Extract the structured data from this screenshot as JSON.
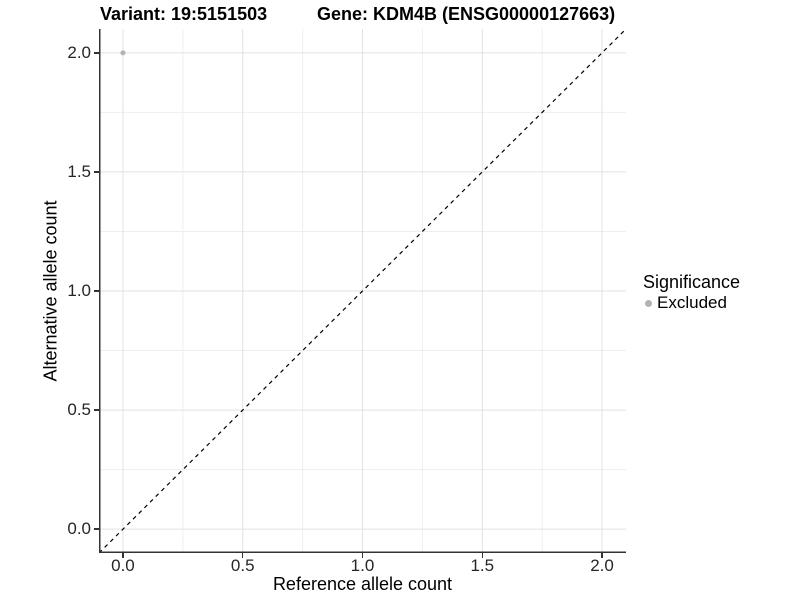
{
  "title": {
    "variant": "Variant: 19:5151503",
    "gene": "Gene: KDM4B (ENSG00000127663)"
  },
  "legend": {
    "title": "Significance",
    "items": [
      {
        "label": "Excluded",
        "color": "#b3b3b3",
        "marker": "point"
      }
    ]
  },
  "colors": {
    "background": "#ffffff",
    "grid_major": "#e2e2e2",
    "grid_minor": "#eeeeee",
    "axis_line": "#333333",
    "tick_mark": "#333333",
    "tick_label": "#262626",
    "title_text": "#000000",
    "reference_line": "#000000",
    "point": "#b3b3b3"
  },
  "chart_data": {
    "type": "scatter",
    "title": "Variant: 19:5151503    Gene: KDM4B (ENSG00000127663)",
    "xlabel": "Reference allele count",
    "ylabel": "Alternative allele count",
    "xlim": [
      -0.1,
      2.1
    ],
    "ylim": [
      -0.1,
      2.1
    ],
    "x_ticks": [
      0.0,
      0.5,
      1.0,
      1.5,
      2.0
    ],
    "x_tick_labels": [
      "0.0",
      "0.5",
      "1.0",
      "1.5",
      "2.0"
    ],
    "y_ticks": [
      0.0,
      0.5,
      1.0,
      1.5,
      2.0
    ],
    "y_tick_labels": [
      "0.0",
      "0.5",
      "1.0",
      "1.5",
      "2.0"
    ],
    "x_minor_ticks": [
      0.25,
      0.75,
      1.25,
      1.75
    ],
    "y_minor_ticks": [
      0.25,
      0.75,
      1.25,
      1.75
    ],
    "grid": "major+minor",
    "legend_position": "right",
    "series": [
      {
        "name": "Excluded",
        "color": "#b3b3b3",
        "point_radius": 2.5,
        "points": [
          {
            "x": 0.0,
            "y": 2.0
          }
        ]
      }
    ],
    "reference_line": {
      "type": "identity y=x",
      "style": "dashed",
      "color": "#000000",
      "from": [
        -0.1,
        -0.1
      ],
      "to": [
        2.1,
        2.1
      ]
    }
  }
}
